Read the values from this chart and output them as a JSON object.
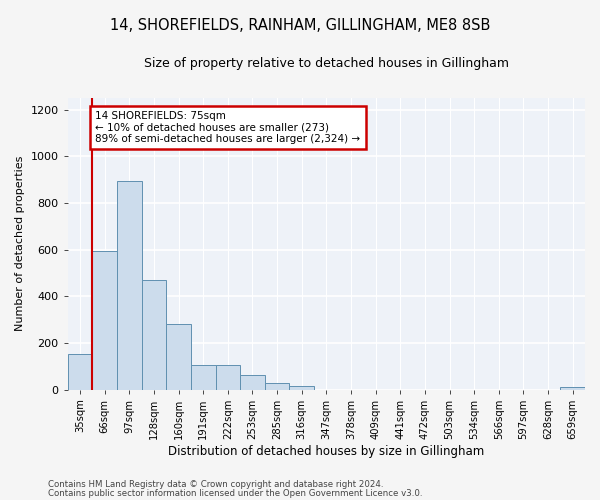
{
  "title": "14, SHOREFIELDS, RAINHAM, GILLINGHAM, ME8 8SB",
  "subtitle": "Size of property relative to detached houses in Gillingham",
  "xlabel": "Distribution of detached houses by size in Gillingham",
  "ylabel": "Number of detached properties",
  "bar_color": "#ccdcec",
  "bar_edge_color": "#6090b0",
  "background_color": "#eef2f8",
  "grid_color": "#ffffff",
  "categories": [
    "35sqm",
    "66sqm",
    "97sqm",
    "128sqm",
    "160sqm",
    "191sqm",
    "222sqm",
    "253sqm",
    "285sqm",
    "316sqm",
    "347sqm",
    "378sqm",
    "409sqm",
    "441sqm",
    "472sqm",
    "503sqm",
    "534sqm",
    "566sqm",
    "597sqm",
    "628sqm",
    "659sqm"
  ],
  "values": [
    152,
    593,
    893,
    470,
    280,
    105,
    105,
    63,
    27,
    14,
    0,
    0,
    0,
    0,
    0,
    0,
    0,
    0,
    0,
    0,
    10
  ],
  "ylim": [
    0,
    1250
  ],
  "yticks": [
    0,
    200,
    400,
    600,
    800,
    1000,
    1200
  ],
  "annotation_text": "14 SHOREFIELDS: 75sqm\n← 10% of detached houses are smaller (273)\n89% of semi-detached houses are larger (2,324) →",
  "annotation_box_color": "#ffffff",
  "annotation_border_color": "#cc0000",
  "vline_color": "#cc0000",
  "footnote1": "Contains HM Land Registry data © Crown copyright and database right 2024.",
  "footnote2": "Contains public sector information licensed under the Open Government Licence v3.0."
}
